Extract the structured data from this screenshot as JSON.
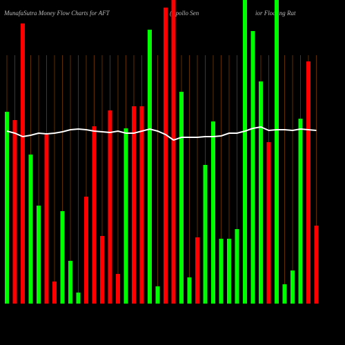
{
  "chart_data": {
    "type": "bar",
    "title": "MunafaSutra  Money Flow  Charts for AFT",
    "subtitle": "(Apollo  Sen",
    "subtitle_tail": "ior Floating Rat",
    "ylim": [
      0,
      440
    ],
    "grid": true,
    "series": [
      {
        "name": "Money Flow",
        "colors": [
          "#00ff00",
          "#ff0000",
          "#ff0000",
          "#00ff00",
          "#00ff00",
          "#ff0000",
          "#ff0000",
          "#00ff00",
          "#00ff00",
          "#00ff00",
          "#ff0000",
          "#ff0000",
          "#ff0000",
          "#ff0000",
          "#ff0000",
          "#00ff00",
          "#ff0000",
          "#ff0000",
          "#00ff00",
          "#00ff00",
          "#ff0000",
          "#ff0000",
          "#00ff00",
          "#00ff00",
          "#ff0000",
          "#00ff00",
          "#00ff00",
          "#00ff00",
          "#00ff00",
          "#00ff00",
          "#00ff00",
          "#00ff00",
          "#00ff00",
          "#ff0000",
          "#00ff00",
          "#00ff00",
          "#00ff00",
          "#00ff00",
          "#ff0000",
          "#ff0000"
        ],
        "values": [
          278,
          266,
          406,
          216,
          142,
          245,
          32,
          134,
          62,
          16,
          155,
          257,
          98,
          280,
          43,
          254,
          286,
          286,
          397,
          25,
          429,
          440,
          307,
          38,
          96,
          201,
          264,
          94,
          94,
          108,
          440,
          395,
          322,
          234,
          440,
          28,
          48,
          268,
          351,
          113
        ]
      },
      {
        "name": "Average",
        "color": "#ffffff",
        "values": [
          250,
          247,
          242,
          244,
          247,
          246,
          247,
          249,
          252,
          253,
          252,
          250,
          249,
          248,
          250,
          247,
          247,
          250,
          253,
          250,
          245,
          237,
          241,
          241,
          241,
          242,
          242,
          243,
          247,
          247,
          250,
          254,
          256,
          251,
          252,
          252,
          251,
          253,
          252,
          251
        ]
      }
    ]
  }
}
